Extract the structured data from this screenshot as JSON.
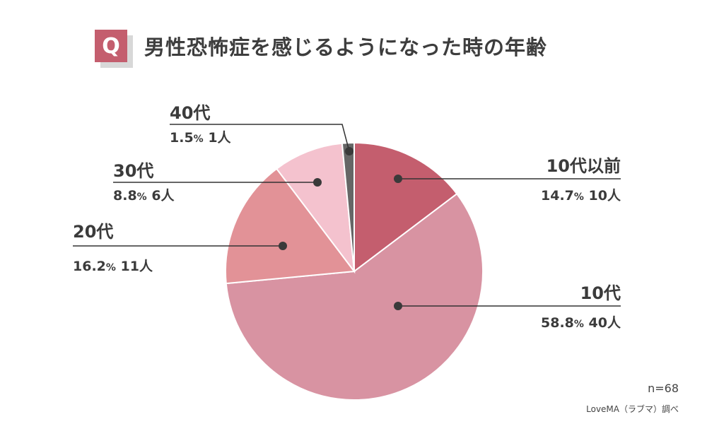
{
  "header": {
    "badge": "Q",
    "title": "男性恐怖症を感じるようになった時の年齢"
  },
  "chart_data": {
    "type": "pie",
    "title": "男性恐怖症を感じるようになった時の年齢",
    "start_angle_deg": 0,
    "direction": "clockwise",
    "slices": [
      {
        "label": "10代以前",
        "percent": 14.7,
        "count_label": "10人",
        "color": "#c45e6e"
      },
      {
        "label": "10代",
        "percent": 58.8,
        "count_label": "40人",
        "color": "#d893a2"
      },
      {
        "label": "20代",
        "percent": 16.2,
        "count_label": "11人",
        "color": "#e29297"
      },
      {
        "label": "30代",
        "percent": 8.8,
        "count_label": "6人",
        "color": "#f4c2ce"
      },
      {
        "label": "40代",
        "percent": 1.5,
        "count_label": "1人",
        "color": "#666666"
      }
    ]
  },
  "footer": {
    "n": "n=68",
    "source": "LoveMA（ラブマ）調べ"
  }
}
